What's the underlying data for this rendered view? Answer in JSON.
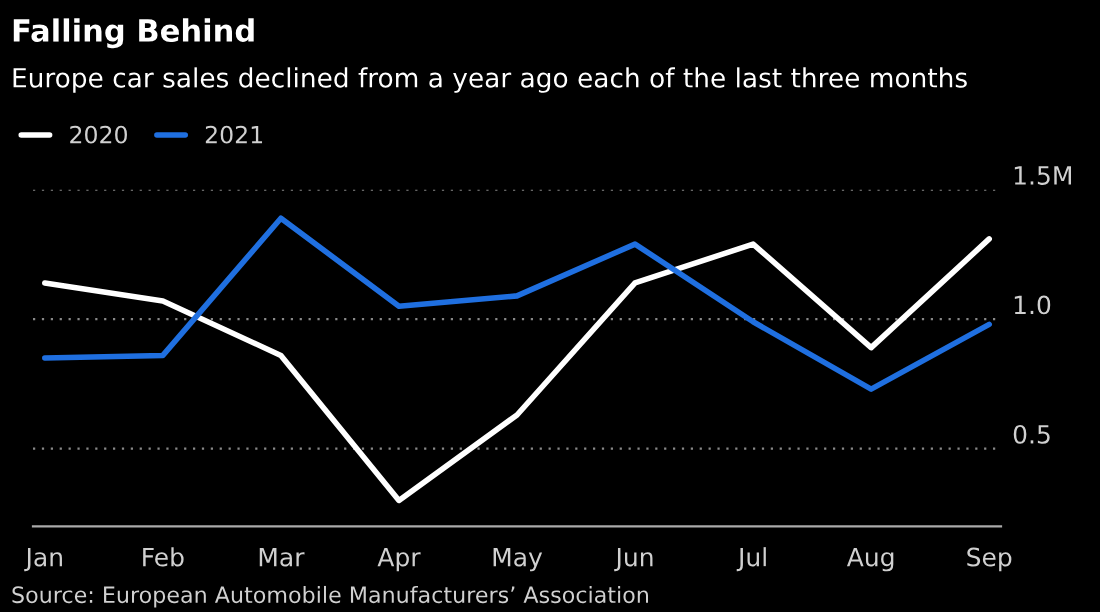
{
  "chart_data": {
    "type": "line",
    "title": "Falling Behind",
    "subtitle": "Europe car sales declined from a year ago each of the last three months",
    "categories": [
      "Jan",
      "Feb",
      "Mar",
      "Apr",
      "May",
      "Jun",
      "Jul",
      "Aug",
      "Sep"
    ],
    "series": [
      {
        "name": "2020",
        "color": "#ffffff",
        "values": [
          1.14,
          1.07,
          0.86,
          0.3,
          0.63,
          1.14,
          1.29,
          0.89,
          1.31
        ]
      },
      {
        "name": "2021",
        "color": "#1f6fe0",
        "values": [
          0.85,
          0.86,
          1.39,
          1.05,
          1.09,
          1.29,
          0.99,
          0.73,
          0.98
        ]
      }
    ],
    "ylim": [
      0.2,
      1.5
    ],
    "yticks": [
      {
        "value": 0.5,
        "label": "0.5"
      },
      {
        "value": 1.0,
        "label": "1.0"
      },
      {
        "value": 1.5,
        "label": "1.5M"
      }
    ],
    "grid": "y",
    "legend": "top left",
    "marker": "none",
    "line_style": "solid",
    "annotations": [
      "Source: European Automobile Manufacturers’ Association"
    ]
  }
}
